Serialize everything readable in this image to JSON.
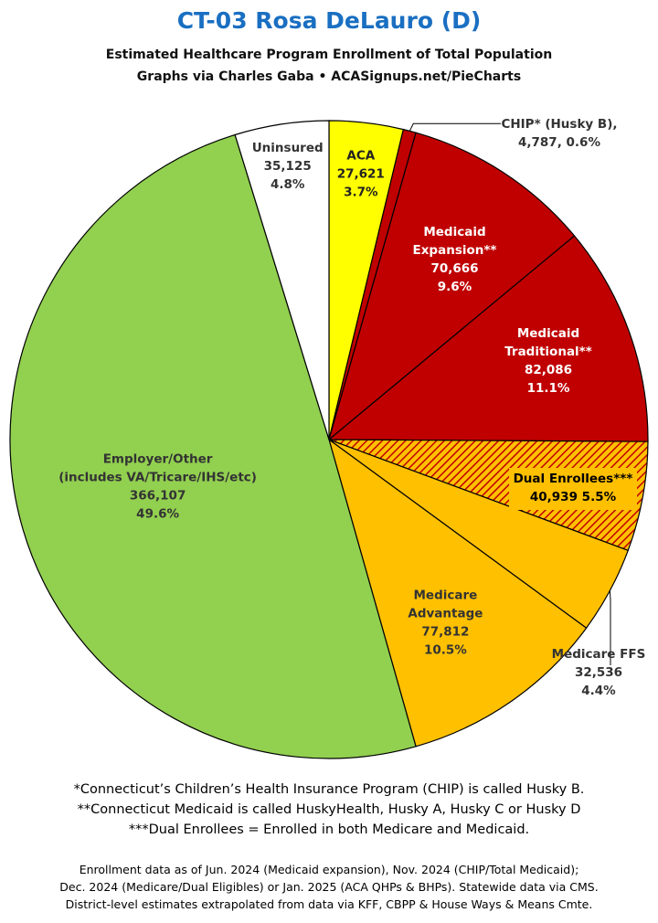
{
  "header": {
    "title": "CT-03 Rosa DeLauro (D)",
    "subtitle_1": "Estimated Healthcare Program Enrollment of Total Population",
    "subtitle_2": "Graphs via Charles Gaba   •   ACASignups.net/PieCharts"
  },
  "chart_data": {
    "type": "pie",
    "start": "12 o'clock",
    "direction": "clockwise",
    "slices": [
      {
        "label": "ACA",
        "value": 27621,
        "percent": "3.7%",
        "color": "#ffff00",
        "text_color": "#222222",
        "lines": [
          "ACA",
          "27,621",
          "3.7%"
        ]
      },
      {
        "label": "CHIP* (Husky B)",
        "value": 4787,
        "percent": "0.6%",
        "color": "#c00000",
        "text_color": "#333333",
        "lines": [
          "CHIP* (Husky B),",
          "4,787, 0.6%"
        ]
      },
      {
        "label": "Medicaid Expansion**",
        "value": 70666,
        "percent": "9.6%",
        "color": "#c00000",
        "text_color": "#ffffff",
        "lines": [
          "Medicaid",
          "Expansion**",
          "70,666",
          "9.6%"
        ]
      },
      {
        "label": "Medicaid Traditional**",
        "value": 82086,
        "percent": "11.1%",
        "color": "#c00000",
        "text_color": "#ffffff",
        "lines": [
          "Medicaid",
          "Traditional**",
          "82,086",
          "11.1%"
        ]
      },
      {
        "label": "Dual Enrollees***",
        "value": 40939,
        "percent": "5.5%",
        "color": "#ffc000",
        "pattern": "hatch-red",
        "text_color": "#000000",
        "lines": [
          "Dual Enrollees***",
          "40,939 5.5%"
        ]
      },
      {
        "label": "Medicare FFS",
        "value": 32536,
        "percent": "4.4%",
        "color": "#ffc000",
        "text_color": "#333333",
        "lines": [
          "Medicare FFS",
          "32,536",
          "4.4%"
        ]
      },
      {
        "label": "Medicare Advantage",
        "value": 77812,
        "percent": "10.5%",
        "color": "#ffc000",
        "text_color": "#333333",
        "lines": [
          "Medicare",
          "Advantage",
          "77,812",
          "10.5%"
        ]
      },
      {
        "label": "Employer/Other (includes VA/Tricare/IHS/etc)",
        "value": 366107,
        "percent": "49.6%",
        "color": "#92d050",
        "text_color": "#333333",
        "lines": [
          "Employer/Other",
          "(includes VA/Tricare/IHS/etc)",
          "366,107",
          "49.6%"
        ]
      },
      {
        "label": "Uninsured",
        "value": 35125,
        "percent": "4.8%",
        "color": "#ffffff",
        "text_color": "#333333",
        "lines": [
          "Uninsured",
          "35,125",
          "4.8%"
        ]
      }
    ]
  },
  "notes": {
    "line1": "*Connecticut’s Children’s Health Insurance Program (CHIP) is called Husky B.",
    "line2": "**Connecticut Medicaid is called HuskyHealth, Husky A, Husky C or Husky D",
    "line3": "***Dual Enrollees = Enrolled in both Medicare and Medicaid."
  },
  "source": {
    "line1": "Enrollment data as of Jun. 2024 (Medicaid expansion), Nov. 2024 (CHIP/Total Medicaid);",
    "line2": "Dec. 2024 (Medicare/Dual Eligibles) or Jan. 2025 (ACA QHPs & BHPs). Statewide data via CMS.",
    "line3": "District-level estimates extrapolated from data via KFF, CBPP & House Ways & Means Cmte."
  }
}
